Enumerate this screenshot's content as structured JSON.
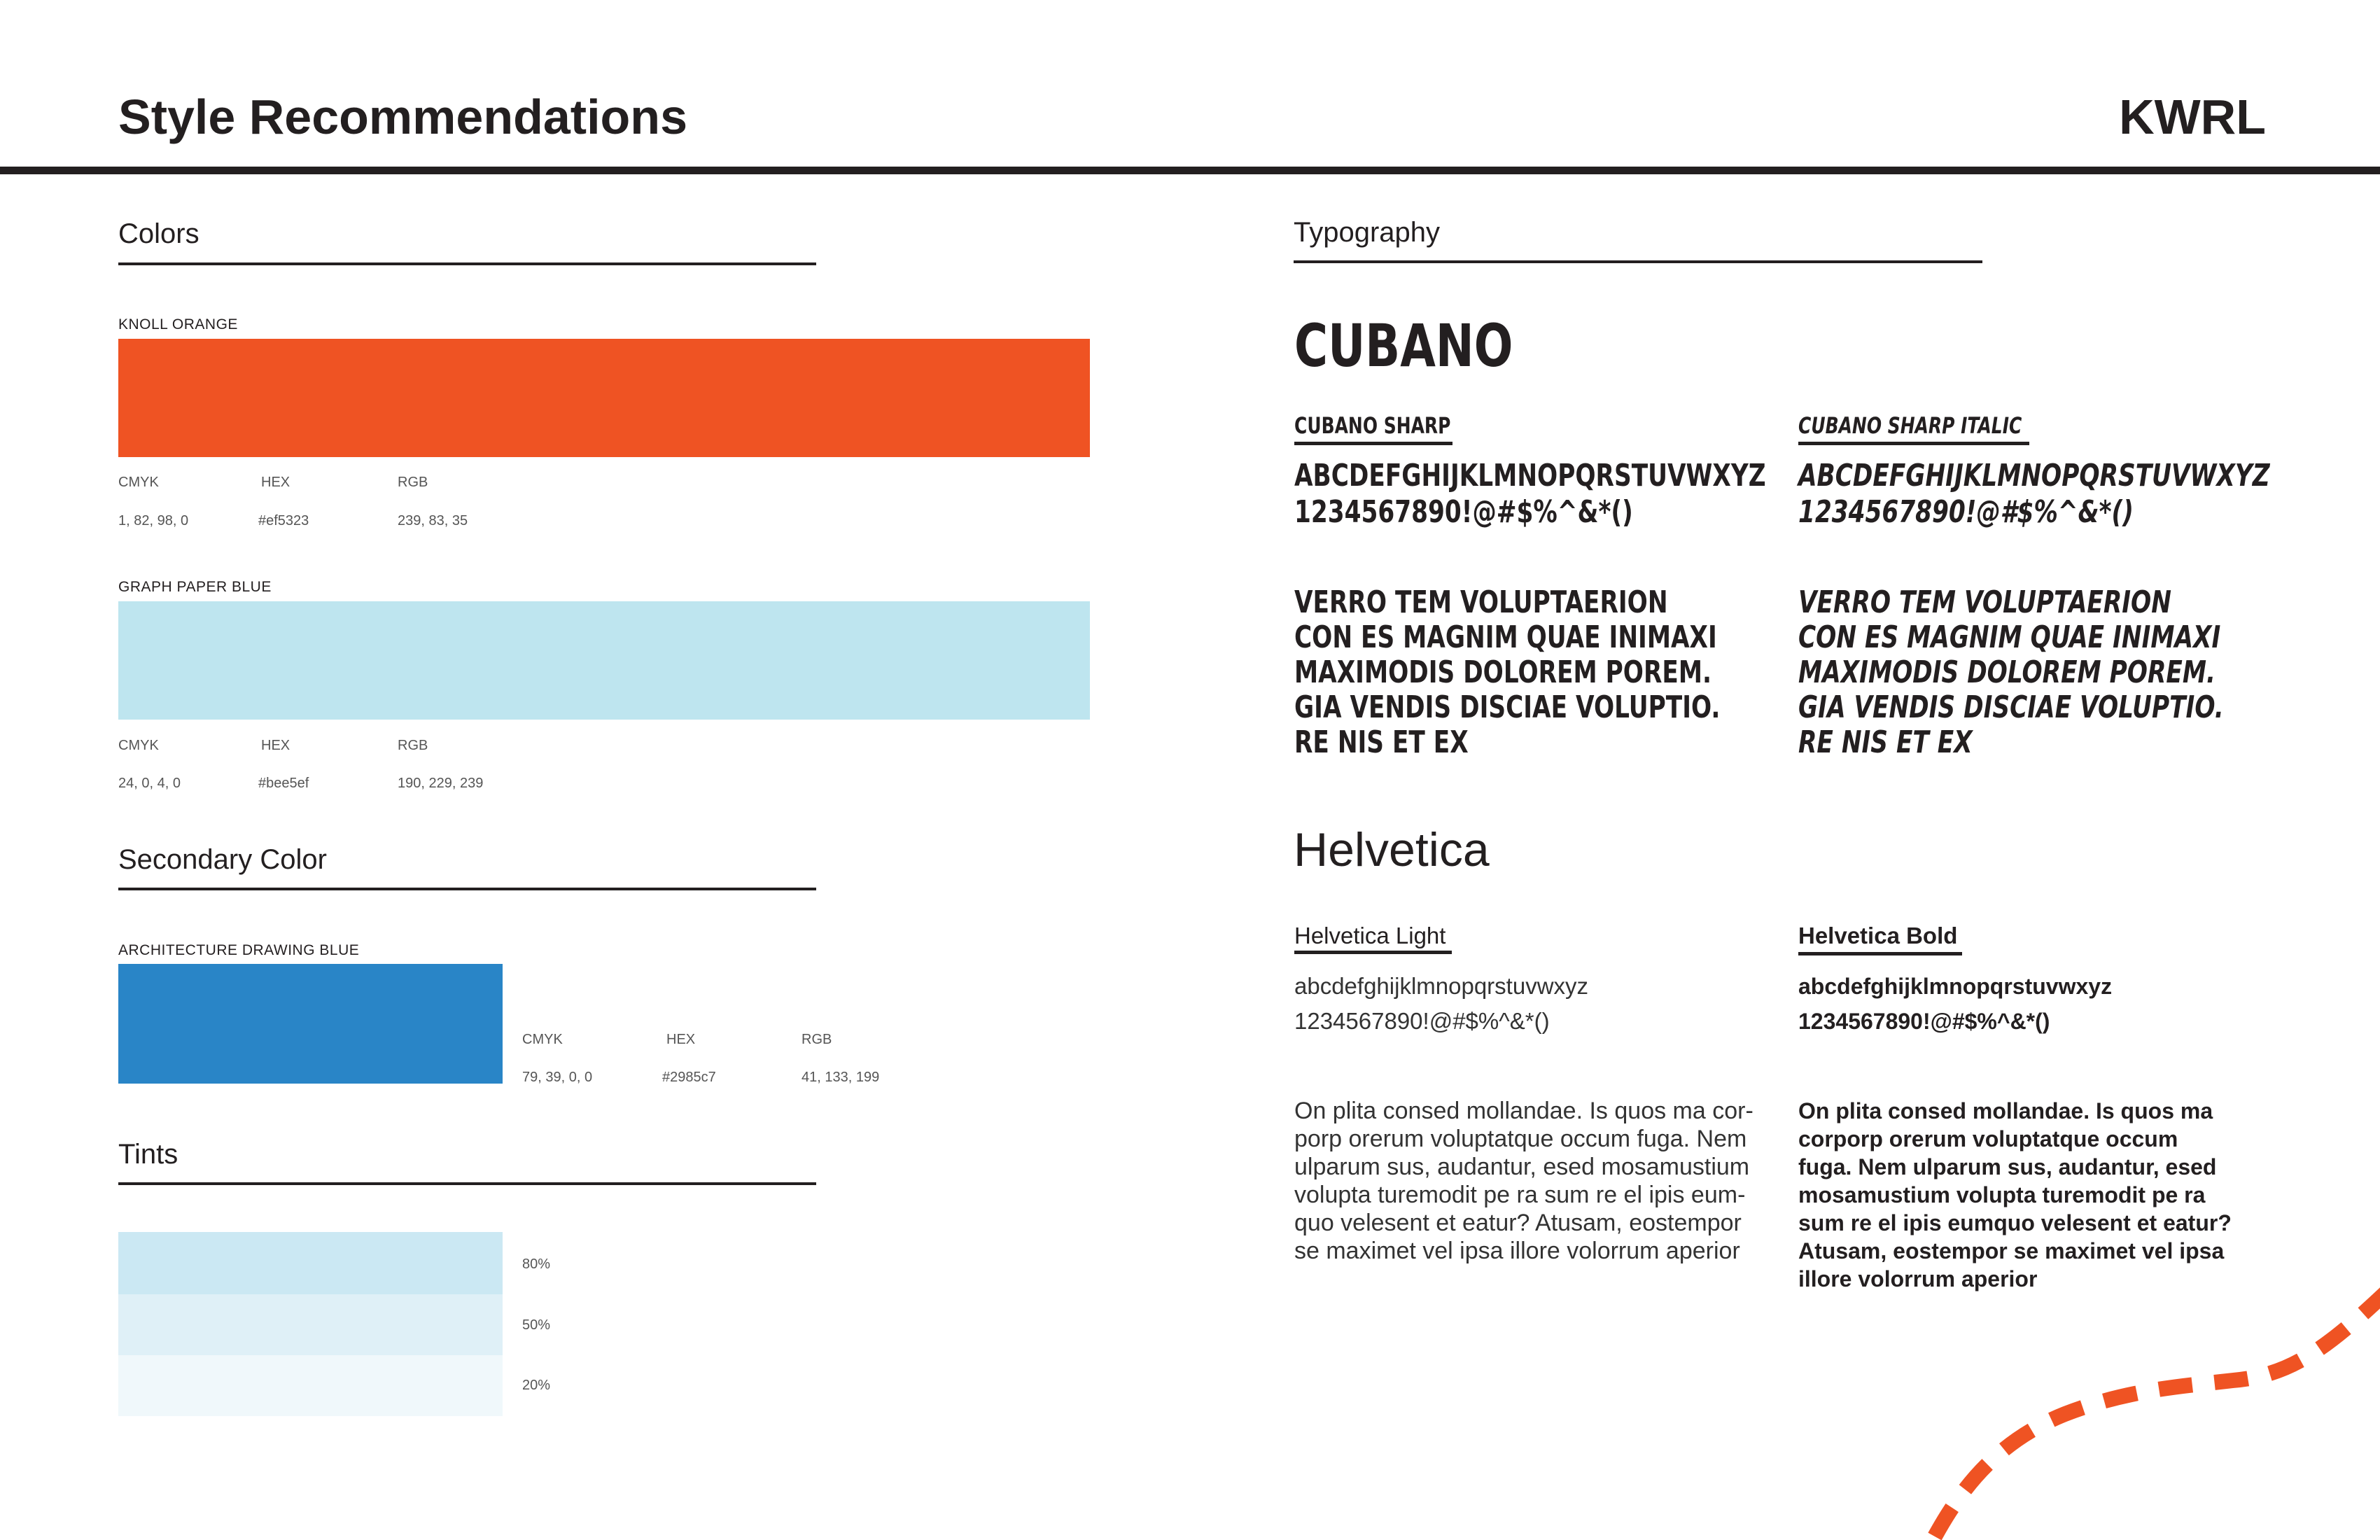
{
  "header": {
    "title": "Style Recommendations",
    "brand": "KWRL"
  },
  "colors": {
    "heading": "Colors",
    "swatches": [
      {
        "name": "KNOLL ORANGE",
        "color": "#ef5323",
        "cmyk_label": "CMYK",
        "hex_label": "HEX",
        "rgb_label": "RGB",
        "cmyk": "1, 82, 98, 0",
        "hex": "#ef5323",
        "rgb": "239, 83, 35"
      },
      {
        "name": "GRAPH PAPER BLUE",
        "color": "#bee5ef",
        "cmyk_label": "CMYK",
        "hex_label": "HEX",
        "rgb_label": "RGB",
        "cmyk": "24, 0, 4, 0",
        "hex": "#bee5ef",
        "rgb": "190, 229, 239"
      }
    ]
  },
  "secondary": {
    "heading": "Secondary Color",
    "swatch": {
      "name": "ARCHITECTURE DRAWING BLUE",
      "color": "#2985c7",
      "cmyk_label": "CMYK",
      "hex_label": "HEX",
      "rgb_label": "RGB",
      "cmyk": "79, 39, 0, 0",
      "hex": "#2985c7",
      "rgb": "41, 133, 199"
    }
  },
  "tints": {
    "heading": "Tints",
    "items": [
      {
        "label": "80%",
        "color": "#cbe8f3"
      },
      {
        "label": "50%",
        "color": "#dff0f7"
      },
      {
        "label": "20%",
        "color": "#f0f8fb"
      }
    ]
  },
  "typography": {
    "heading": "Typography",
    "cubano": {
      "title": "CUBANO",
      "variants": [
        {
          "name": "CUBANO SHARP",
          "alphabet": "ABCDEFGHIJKLMNOPQRSTUVWXYZ",
          "digits": "1234567890!@#$%^&*()",
          "sample": [
            "VERRO TEM VOLUPTAERION",
            "CON ES MAGNIM QUAE INIMAXI",
            "MAXIMODIS DOLOREM POREM.",
            "GIA VENDIS DISCIAE VOLUPTIO.",
            "RE NIS ET EX"
          ]
        },
        {
          "name": "CUBANO SHARP ITALIC",
          "alphabet": "ABCDEFGHIJKLMNOPQRSTUVWXYZ",
          "digits": "1234567890!@#$%^&*()",
          "sample": [
            "VERRO TEM VOLUPTAERION",
            "CON ES MAGNIM QUAE INIMAXI",
            "MAXIMODIS DOLOREM POREM.",
            "GIA VENDIS DISCIAE VOLUPTIO.",
            "RE NIS ET EX"
          ]
        }
      ]
    },
    "helvetica": {
      "title": "Helvetica",
      "variants": [
        {
          "name": "Helvetica Light",
          "alphabet": "abcdefghijklmnopqrstuvwxyz",
          "digits": "1234567890!@#$%^&*()",
          "sample": [
            "On plita consed mollandae. Is quos ma cor-",
            "porp orerum voluptatque occum fuga. Nem",
            "ulparum sus, audantur, esed mosamustium",
            "volupta turemodit pe ra sum re el ipis eum-",
            "quo velesent et eatur? Atusam, eostempor",
            "se maximet vel ipsa illore volorrum aperior"
          ]
        },
        {
          "name": "Helvetica Bold",
          "alphabet": "abcdefghijklmnopqrstuvwxyz",
          "digits": "1234567890!@#$%^&*()",
          "sample": [
            "On plita consed mollandae. Is quos ma",
            "corporp orerum voluptatque occum",
            "fuga. Nem ulparum sus, audantur, esed",
            "mosamustium volupta turemodit pe ra",
            "sum re el ipis eumquo velesent et eatur?",
            "Atusam, eostempor se maximet vel ipsa",
            "illore volorrum aperior"
          ]
        }
      ]
    }
  },
  "decoration": {
    "dashed_path_color": "#ef5323"
  }
}
